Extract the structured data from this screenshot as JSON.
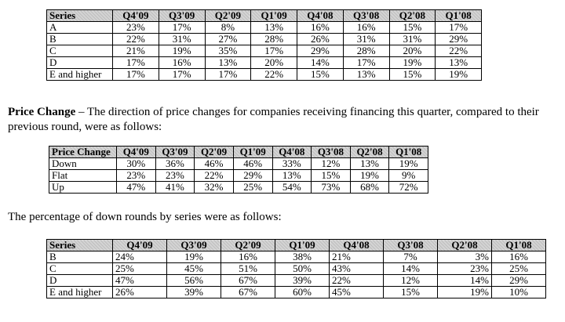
{
  "table1": {
    "headers": [
      "Series",
      "Q4'09",
      "Q3'09",
      "Q2'09",
      "Q1'09",
      "Q4'08",
      "Q3'08",
      "Q2'08",
      "Q1'08"
    ],
    "rows": [
      [
        "A",
        "23%",
        "17%",
        "8%",
        "13%",
        "16%",
        "16%",
        "15%",
        "17%"
      ],
      [
        "B",
        "22%",
        "31%",
        "27%",
        "28%",
        "26%",
        "31%",
        "31%",
        "29%"
      ],
      [
        "C",
        "21%",
        "19%",
        "35%",
        "17%",
        "29%",
        "28%",
        "20%",
        "22%"
      ],
      [
        "D",
        "17%",
        "16%",
        "13%",
        "20%",
        "14%",
        "17%",
        "19%",
        "13%"
      ],
      [
        "E and higher",
        "17%",
        "17%",
        "17%",
        "22%",
        "15%",
        "13%",
        "15%",
        "19%"
      ]
    ]
  },
  "paragraph1": {
    "bold_lead": "Price Change",
    "text": " – The direction of price changes for companies receiving financing this quarter, compared to their previous round, were as follows:"
  },
  "table2": {
    "headers": [
      "Price Change",
      "Q4'09",
      "Q3'09",
      "Q2'09",
      "Q1'09",
      "Q4'08",
      "Q3'08",
      "Q2'08",
      "Q1'08"
    ],
    "rows": [
      [
        "Down",
        "30%",
        "36%",
        "46%",
        "46%",
        "33%",
        "12%",
        "13%",
        "19%"
      ],
      [
        "Flat",
        "23%",
        "23%",
        "22%",
        "29%",
        "13%",
        "15%",
        "19%",
        "9%"
      ],
      [
        "Up",
        "47%",
        "41%",
        "32%",
        "25%",
        "54%",
        "73%",
        "68%",
        "72%"
      ]
    ]
  },
  "paragraph2": {
    "text": "The percentage of down rounds by series were as follows:"
  },
  "table3": {
    "headers": [
      "Series",
      "Q4'09",
      "Q3'09",
      "Q2'09",
      "Q1'09",
      "Q4'08",
      "Q3'08",
      "Q2'08",
      "Q1'08"
    ],
    "rows": [
      [
        "B",
        "24%",
        "19%",
        "16%",
        "38%",
        "21%",
        "7%",
        "3%",
        "16%"
      ],
      [
        "C",
        "25%",
        "45%",
        "51%",
        "50%",
        "43%",
        "14%",
        "23%",
        "25%"
      ],
      [
        "D",
        "47%",
        "56%",
        "67%",
        "39%",
        "22%",
        "12%",
        "14%",
        "29%"
      ],
      [
        "E and higher",
        "26%",
        "39%",
        "67%",
        "60%",
        "45%",
        "15%",
        "19%",
        "10%"
      ]
    ]
  }
}
